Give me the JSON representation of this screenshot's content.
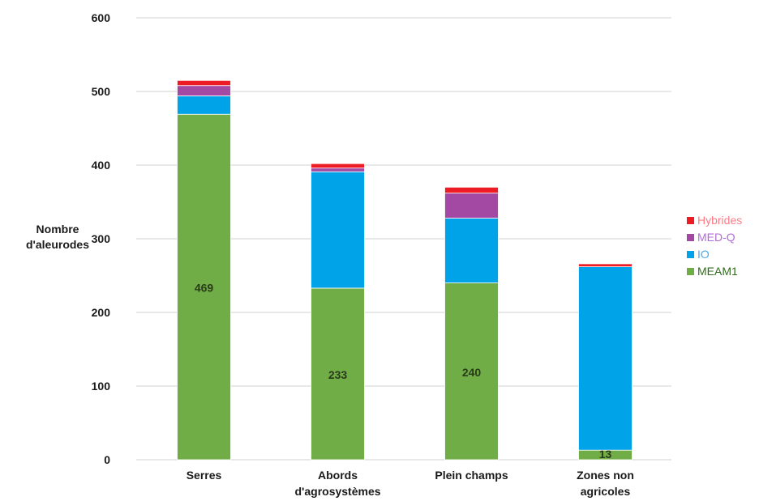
{
  "chart_data": {
    "type": "bar",
    "stacked": true,
    "title": "",
    "ylabel": [
      "Nombre",
      "d'aleurodes"
    ],
    "xlabel": "",
    "categories": [
      [
        "Serres"
      ],
      [
        "Abords",
        "d'agrosystèmes"
      ],
      [
        "Plein champs"
      ],
      [
        "Zones non",
        "agricoles"
      ]
    ],
    "ylim": [
      0,
      600
    ],
    "yticks": [
      0,
      100,
      200,
      300,
      400,
      500,
      600
    ],
    "grid": true,
    "legend_position": "right",
    "series": [
      {
        "name": "MEAM1",
        "color": "#70ad47",
        "values": [
          469,
          233,
          240,
          13
        ],
        "labels": [
          "469",
          "233",
          "240",
          "13"
        ]
      },
      {
        "name": "IO",
        "color": "#00a2e8",
        "values": [
          25,
          158,
          88,
          249
        ],
        "labels": null
      },
      {
        "name": "MED-Q",
        "color": "#a349a4",
        "values": [
          14,
          5,
          34,
          0
        ],
        "labels": null
      },
      {
        "name": "Hybrides",
        "color": "#ed1c24",
        "values": [
          7,
          6,
          8,
          4
        ],
        "labels": null
      }
    ],
    "legend_text_colors": {
      "Hybrides": "#ff7a85",
      "MED-Q": "#b36bd6",
      "IO": "#4aa8f0",
      "MEAM1": "#2f6a1a"
    }
  }
}
